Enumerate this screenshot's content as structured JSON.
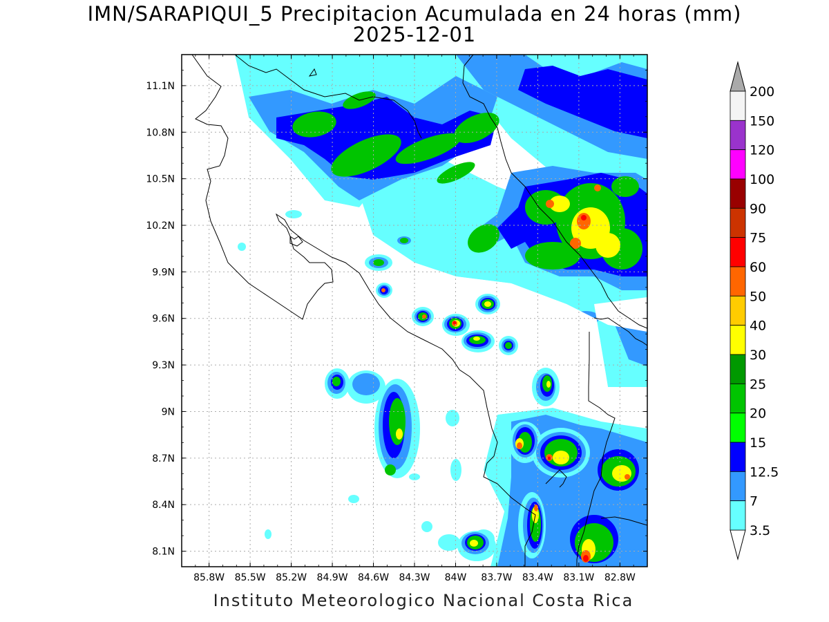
{
  "title": "IMN/SARAPIQUI_5 Precipitacion Acumulada en 24 horas (mm)",
  "date": "2025-12-01",
  "credit": "Instituto Meteorologico Nacional Costa Rica",
  "map": {
    "lon_range": [
      -86.0,
      -82.6
    ],
    "lat_range": [
      8.0,
      11.3
    ],
    "lat_ticks": [
      "11.1N",
      "10.8N",
      "10.5N",
      "10.2N",
      "9.9N",
      "9.6N",
      "9.3N",
      "9N",
      "8.7N",
      "8.4N",
      "8.1N"
    ],
    "lat_values": [
      11.1,
      10.8,
      10.5,
      10.2,
      9.9,
      9.6,
      9.3,
      9.0,
      8.7,
      8.4,
      8.1
    ],
    "lon_ticks": [
      "85.8W",
      "85.5W",
      "85.2W",
      "84.9W",
      "84.6W",
      "84.3W",
      "84W",
      "83.7W",
      "83.4W",
      "83.1W",
      "82.8W"
    ],
    "lon_values": [
      -85.8,
      -85.5,
      -85.2,
      -84.9,
      -84.6,
      -84.3,
      -84.0,
      -83.7,
      -83.4,
      -83.1,
      -82.8
    ],
    "grid": true
  },
  "legend": {
    "labels": [
      "200",
      "150",
      "120",
      "100",
      "90",
      "75",
      "60",
      "50",
      "40",
      "30",
      "25",
      "20",
      "15",
      "12.5",
      "7",
      "3.5"
    ],
    "colors": [
      "#f4f4f4",
      "#9a33cc",
      "#ff00ff",
      "#990000",
      "#cc3300",
      "#ff0000",
      "#ff6600",
      "#ffcc00",
      "#ffff00",
      "#009900",
      "#00c400",
      "#00ff00",
      "#0000ff",
      "#3399ff",
      "#66ffff"
    ],
    "colors_note": "bands bottom to top: 3.5-7, 7-12.5, 12.5-15, 15-20, 20-25, 25-30, 30-40, 40-50, 50-60, 60-75, 75-90, 90-100, 100-120, 120-150, 150-200"
  }
}
